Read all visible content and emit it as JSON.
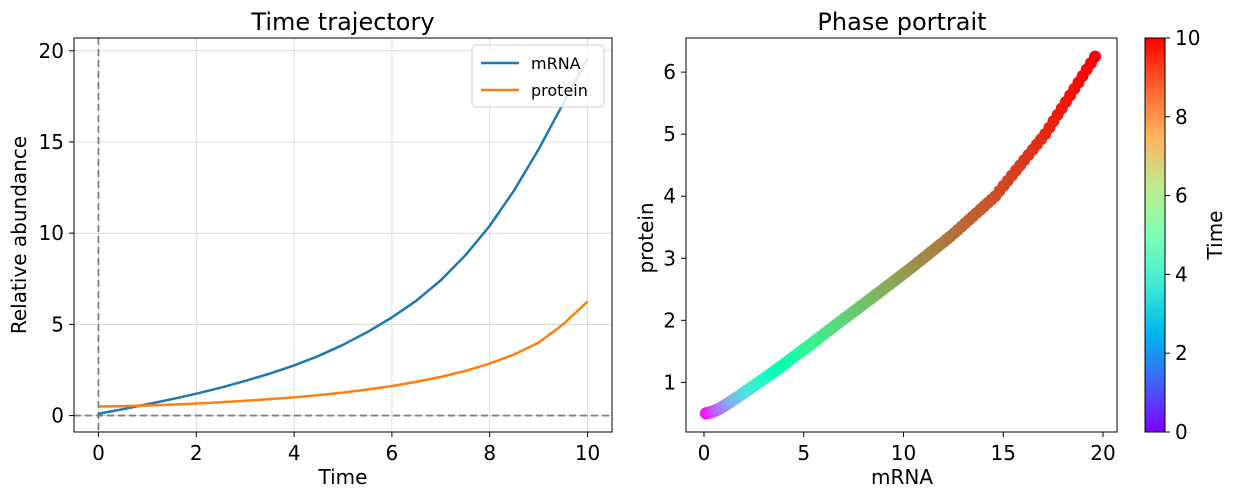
{
  "chart_data": [
    {
      "type": "line",
      "title": "Time trajectory",
      "xlabel": "Time",
      "ylabel": "Relative abundance",
      "xlim": [
        -0.5,
        10.5
      ],
      "ylim": [
        -0.9,
        20.7
      ],
      "xticks": [
        0,
        2,
        4,
        6,
        8,
        10
      ],
      "yticks": [
        0,
        5,
        10,
        15,
        20
      ],
      "grid": true,
      "legend": "top-right",
      "reference_lines": {
        "x": 0,
        "y": 0,
        "style": "dashed",
        "color": "#808080"
      },
      "x": [
        0,
        0.5,
        1,
        1.5,
        2,
        2.5,
        3,
        3.5,
        4,
        4.5,
        5,
        5.5,
        6,
        6.5,
        7,
        7.5,
        8,
        8.5,
        9,
        9.5,
        10
      ],
      "series": [
        {
          "name": "mRNA",
          "color": "#1f77b4",
          "values": [
            0.1,
            0.35,
            0.62,
            0.9,
            1.2,
            1.53,
            1.9,
            2.3,
            2.75,
            3.27,
            3.88,
            4.58,
            5.38,
            6.3,
            7.42,
            8.78,
            10.4,
            12.35,
            14.6,
            17.1,
            19.6
          ]
        },
        {
          "name": "protein",
          "color": "#ff7f0e",
          "values": [
            0.5,
            0.52,
            0.55,
            0.6,
            0.66,
            0.73,
            0.81,
            0.9,
            1.0,
            1.12,
            1.26,
            1.43,
            1.62,
            1.85,
            2.12,
            2.45,
            2.85,
            3.35,
            4.0,
            5.0,
            6.25
          ]
        }
      ]
    },
    {
      "type": "scatter",
      "title": "Phase portrait",
      "xlabel": "mRNA",
      "ylabel": "protein",
      "xlim": [
        -0.9,
        20.7
      ],
      "ylim": [
        0.2,
        6.55
      ],
      "xticks": [
        0,
        5,
        10,
        15,
        20
      ],
      "yticks": [
        1,
        2,
        3,
        4,
        5,
        6
      ],
      "grid": false,
      "colorbar": {
        "label": "Time",
        "range": [
          0,
          10
        ],
        "ticks": [
          0,
          2,
          4,
          6,
          8,
          10
        ],
        "colormap": "rainbow"
      },
      "x": [
        0.1,
        0.35,
        0.62,
        0.9,
        1.2,
        1.53,
        1.9,
        2.3,
        2.75,
        3.27,
        3.88,
        4.58,
        5.38,
        6.3,
        7.42,
        8.78,
        10.4,
        12.35,
        14.6,
        17.1,
        19.6
      ],
      "y": [
        0.5,
        0.52,
        0.55,
        0.6,
        0.66,
        0.73,
        0.81,
        0.9,
        1.0,
        1.12,
        1.26,
        1.43,
        1.62,
        1.85,
        2.12,
        2.45,
        2.85,
        3.35,
        4.0,
        5.0,
        6.25
      ],
      "time": [
        0,
        0.5,
        1,
        1.5,
        2,
        2.5,
        3,
        3.5,
        4,
        4.5,
        5,
        5.5,
        6,
        6.5,
        7,
        7.5,
        8,
        8.5,
        9,
        9.5,
        10
      ]
    }
  ]
}
